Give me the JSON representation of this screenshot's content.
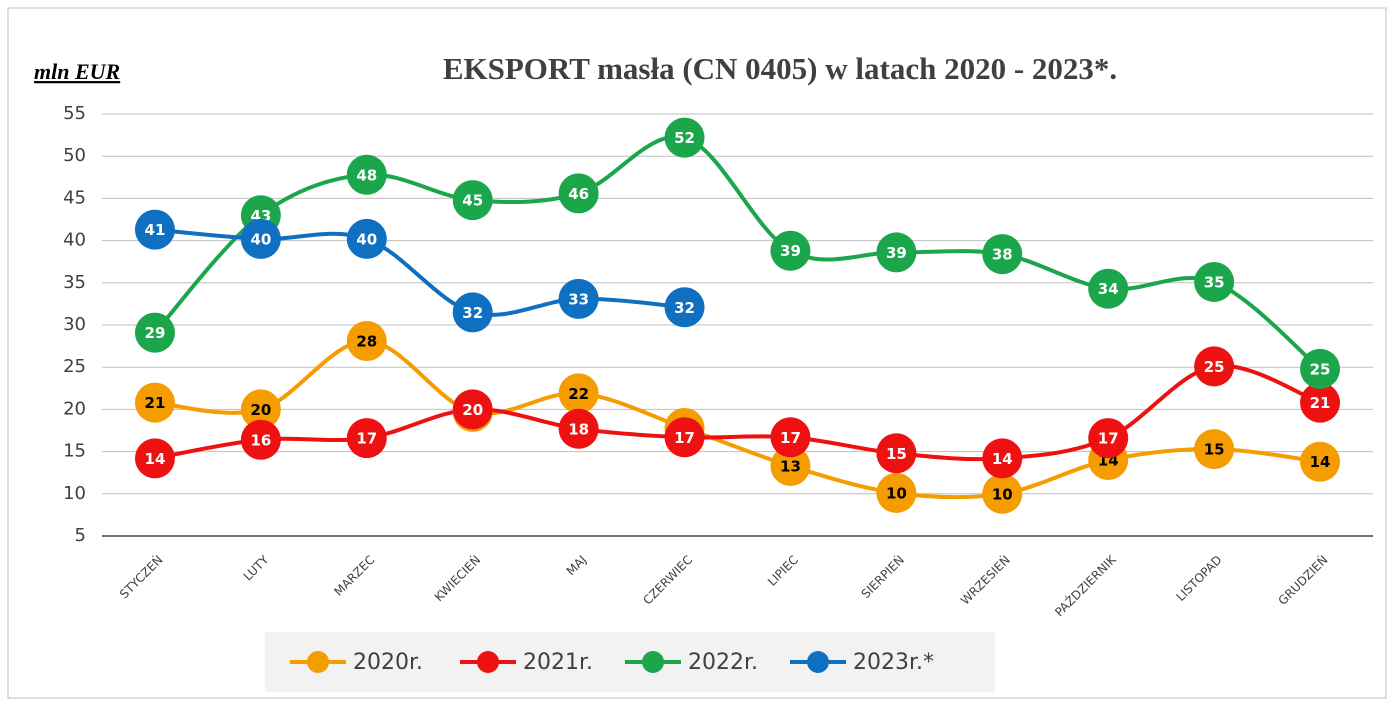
{
  "chart_data": {
    "type": "line",
    "title": "EKSPORT masła (CN 0405) w latach 2020 - 2023*.",
    "y_label": "mln EUR",
    "categories": [
      "STYCZEŃ",
      "LUTY",
      "MARZEC",
      "KWIECIEŃ",
      "MAJ",
      "CZERWIEC",
      "LIPIEC",
      "SIERPIEŃ",
      "WRZESIEŃ",
      "PAŹDZIERNIK",
      "LISTOPAD",
      "GRUDZIEŃ"
    ],
    "series": [
      {
        "name": "2020r.",
        "color": "#f59c00",
        "label_color": "#000000",
        "values": [
          20.8,
          20.0,
          28.1,
          19.7,
          21.9,
          17.8,
          13.3,
          10.1,
          10.0,
          14.0,
          15.3,
          13.8
        ],
        "value_labels": [
          "21",
          "20",
          "28",
          "20",
          "22",
          "18",
          "13",
          "10",
          "10",
          "14",
          "15",
          "14"
        ]
      },
      {
        "name": "2021r.",
        "color": "#ee1111",
        "label_color": "#ffffff",
        "values": [
          14.2,
          16.4,
          16.6,
          20.0,
          17.7,
          16.7,
          16.7,
          14.8,
          14.2,
          16.6,
          25.1,
          20.8
        ],
        "value_labels": [
          "14",
          "16",
          "17",
          "20",
          "18",
          "17",
          "17",
          "15",
          "14",
          "17",
          "25",
          "21"
        ]
      },
      {
        "name": "2022r.",
        "color": "#1ca64c",
        "label_color": "#ffffff",
        "values": [
          29.1,
          43.0,
          47.8,
          44.8,
          45.6,
          52.2,
          38.8,
          38.6,
          38.4,
          34.3,
          35.1,
          24.8
        ],
        "value_labels": [
          "29",
          "43",
          "48",
          "45",
          "46",
          "52",
          "39",
          "39",
          "38",
          "34",
          "35",
          "25"
        ]
      },
      {
        "name": "2023r.*",
        "color": "#0f6fc0",
        "label_color": "#ffffff",
        "values": [
          41.3,
          40.2,
          40.2,
          31.5,
          33.1,
          32.1,
          null,
          null,
          null,
          null,
          null,
          null
        ],
        "value_labels": [
          "41",
          "40",
          "40",
          "32",
          "33",
          "32",
          null,
          null,
          null,
          null,
          null,
          null
        ]
      }
    ],
    "ylim": [
      5,
      55
    ],
    "yticks": [
      5,
      10,
      15,
      20,
      25,
      30,
      35,
      40,
      45,
      50,
      55
    ],
    "grid": true,
    "legend": "bottom"
  }
}
